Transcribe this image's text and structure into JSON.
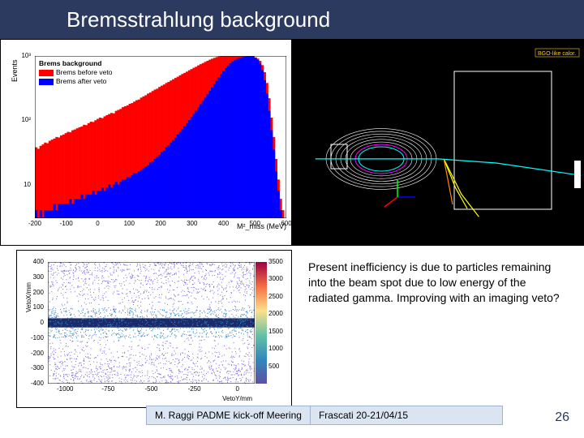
{
  "title": "Bremsstrahlung background",
  "colors": {
    "title_bg": "#2b3a5e",
    "title_fg": "#ffffff",
    "red": "#ff0000",
    "blue": "#0000ff",
    "black": "#000000",
    "footer_bg": "#dbe5f1",
    "footer_border": "#a0b4d0"
  },
  "histogram": {
    "type": "histogram",
    "title": "Brems background",
    "ylabel": "Events",
    "xlabel": "M²_miss (MeV)",
    "legend": [
      {
        "label": "Brems before veto",
        "color": "#ff0000"
      },
      {
        "label": "Brems after veto",
        "color": "#0000ff"
      }
    ],
    "xlim": [
      -200,
      600
    ],
    "xticks": [
      -200,
      -100,
      0,
      100,
      200,
      300,
      400,
      500,
      600
    ],
    "ylim": [
      3,
      1000
    ],
    "yscale": "log",
    "yticks": [
      10,
      100,
      1000
    ],
    "yticklabels": [
      "10",
      "10²",
      "10³"
    ],
    "background_color": "#ffffff",
    "bin_count": 110,
    "series": [
      {
        "name": "before_veto",
        "color": "#ff0000",
        "values": [
          38,
          36,
          40,
          42,
          45,
          44,
          48,
          50,
          52,
          55,
          54,
          58,
          60,
          63,
          66,
          65,
          70,
          72,
          75,
          78,
          80,
          85,
          84,
          90,
          95,
          94,
          100,
          105,
          110,
          108,
          115,
          120,
          125,
          130,
          128,
          140,
          145,
          150,
          160,
          165,
          170,
          180,
          185,
          195,
          205,
          210,
          225,
          235,
          245,
          260,
          270,
          285,
          300,
          310,
          330,
          345,
          360,
          380,
          395,
          415,
          435,
          455,
          475,
          500,
          525,
          545,
          570,
          600,
          625,
          655,
          680,
          715,
          745,
          775,
          810,
          840,
          875,
          905,
          935,
          960,
          980,
          990,
          995,
          1000,
          998,
          1000,
          1000,
          1000,
          998,
          1000,
          1000,
          998,
          1000,
          995,
          990,
          985,
          950,
          910,
          840,
          720,
          560,
          380,
          220,
          110,
          55,
          25,
          12,
          6,
          4,
          3
        ]
      },
      {
        "name": "after_veto",
        "color": "#0000ff",
        "values": [
          4,
          3,
          4,
          3,
          4,
          4,
          4,
          4,
          5,
          4,
          5,
          5,
          5,
          5,
          5,
          6,
          5,
          6,
          6,
          6,
          7,
          6,
          7,
          7,
          7,
          8,
          7,
          8,
          8,
          9,
          8,
          9,
          10,
          9,
          10,
          11,
          10,
          11,
          12,
          12,
          13,
          13,
          14,
          15,
          15,
          16,
          17,
          18,
          19,
          20,
          22,
          23,
          25,
          27,
          29,
          32,
          34,
          38,
          41,
          45,
          49,
          54,
          60,
          66,
          73,
          81,
          90,
          100,
          112,
          125,
          140,
          158,
          178,
          200,
          225,
          255,
          288,
          325,
          368,
          415,
          468,
          525,
          585,
          648,
          710,
          770,
          822,
          866,
          900,
          928,
          950,
          968,
          980,
          988,
          994,
          980,
          940,
          870,
          760,
          600,
          420,
          260,
          140,
          70,
          35,
          16,
          8,
          4,
          3,
          3
        ]
      }
    ]
  },
  "detector": {
    "type": "event-display",
    "background_color": "#000000",
    "frame_color": "#ffffff",
    "magnet_color": "#ffffff",
    "coil_colors": [
      "#ff00ff",
      "#00ffff"
    ],
    "axis_colors": {
      "x": "#ff0000",
      "y": "#00ff00",
      "z": "#0000ff"
    },
    "tracks": [
      {
        "color": "#00ffff",
        "pts": [
          [
            0.08,
            0.58
          ],
          [
            0.5,
            0.58
          ],
          [
            0.7,
            0.6
          ],
          [
            0.99,
            0.66
          ]
        ]
      },
      {
        "color": "#ffff00",
        "pts": [
          [
            0.52,
            0.58
          ],
          [
            0.56,
            0.72
          ],
          [
            0.6,
            0.82
          ]
        ]
      },
      {
        "color": "#ffff00",
        "pts": [
          [
            0.52,
            0.58
          ],
          [
            0.58,
            0.75
          ],
          [
            0.64,
            0.86
          ]
        ]
      },
      {
        "color": "#ff8800",
        "pts": [
          [
            0.52,
            0.58
          ],
          [
            0.55,
            0.8
          ]
        ]
      }
    ],
    "label": {
      "text": "BGO-like calor.",
      "color": "#ffcc00",
      "font_size": 7
    }
  },
  "scatter": {
    "type": "scatter-heat",
    "xlabel": "VetoY/mm",
    "ylabel": "VetoX/mm",
    "xlim": [
      -1100,
      100
    ],
    "xticks": [
      -1000,
      -750,
      -500,
      -250,
      0
    ],
    "ylim": [
      -400,
      400
    ],
    "yticks": [
      -400,
      -300,
      -200,
      -100,
      0,
      100,
      200,
      300,
      400
    ],
    "background_color": "#ffffff",
    "dense_band": {
      "y_center": 0,
      "y_halfwidth": 30,
      "color": "#1a2a6c"
    },
    "sparse_color": "#7966d8",
    "colormap_stops": [
      {
        "pos": 0.0,
        "color": "#5e4fa2"
      },
      {
        "pos": 0.2,
        "color": "#3288bd"
      },
      {
        "pos": 0.4,
        "color": "#66c2a5"
      },
      {
        "pos": 0.6,
        "color": "#fee08b"
      },
      {
        "pos": 0.8,
        "color": "#f46d43"
      },
      {
        "pos": 1.0,
        "color": "#9e0142"
      }
    ],
    "cb_ticks": [
      500,
      1000,
      1500,
      2000,
      2500,
      3000,
      3500
    ],
    "cb_range": [
      0,
      3500
    ]
  },
  "body_text": "Present inefficiency is due to particles remaining into the beam spot due to low energy of the radiated gamma. Improving with an imaging veto?",
  "footer": {
    "left": "M. Raggi PADME kick-off Meering",
    "right": "Frascati 20-21/04/15"
  },
  "page_number": "26"
}
